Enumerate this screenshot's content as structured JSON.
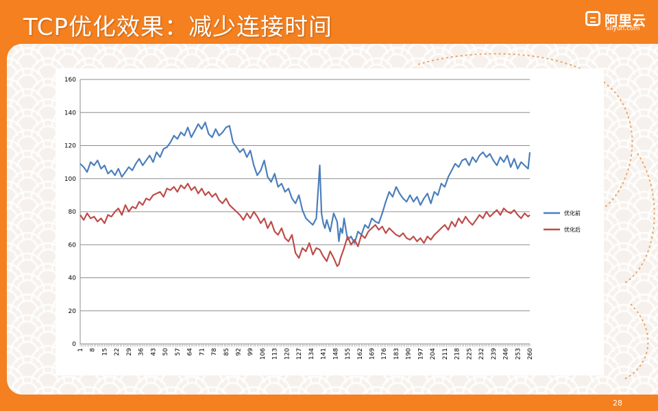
{
  "slide": {
    "title": "TCP优化效果：减少连接时间",
    "page_number": "28"
  },
  "logo": {
    "name": "阿里云",
    "domain": "aliyun.com",
    "icon": "aliyun-logo-icon"
  },
  "colors": {
    "background": "#f4801f",
    "series_before": "#4a7ebb",
    "series_after": "#be4b48"
  },
  "chart_data": {
    "type": "line",
    "title": "",
    "xlabel": "",
    "ylabel": "",
    "ylim": [
      0,
      160
    ],
    "yticks": [
      0,
      20,
      40,
      60,
      80,
      100,
      120,
      140,
      160
    ],
    "x_range": [
      1,
      260
    ],
    "xtick_labels": [
      "1",
      "8",
      "15",
      "22",
      "29",
      "36",
      "43",
      "50",
      "57",
      "64",
      "71",
      "78",
      "85",
      "92",
      "99",
      "106",
      "113",
      "120",
      "127",
      "134",
      "141",
      "148",
      "155",
      "162",
      "169",
      "176",
      "183",
      "190",
      "197",
      "204",
      "211",
      "218",
      "225",
      "232",
      "239",
      "246",
      "253",
      "260"
    ],
    "grid": "horizontal",
    "legend": "right",
    "series": [
      {
        "name": "优化前",
        "color": "#4a7ebb",
        "x": [
          1,
          3,
          5,
          7,
          9,
          11,
          13,
          15,
          17,
          19,
          21,
          23,
          25,
          27,
          29,
          31,
          33,
          35,
          37,
          39,
          41,
          43,
          45,
          47,
          49,
          51,
          53,
          55,
          57,
          59,
          61,
          63,
          65,
          67,
          69,
          71,
          73,
          75,
          77,
          79,
          81,
          83,
          85,
          87,
          89,
          91,
          93,
          95,
          97,
          99,
          101,
          103,
          105,
          107,
          109,
          111,
          113,
          115,
          117,
          119,
          121,
          123,
          125,
          127,
          129,
          131,
          133,
          135,
          137,
          139,
          140,
          141,
          142,
          143,
          145,
          147,
          149,
          150,
          151,
          152,
          153,
          155,
          157,
          159,
          161,
          163,
          165,
          167,
          169,
          171,
          173,
          175,
          177,
          179,
          181,
          183,
          185,
          187,
          189,
          191,
          193,
          195,
          197,
          199,
          201,
          203,
          205,
          207,
          209,
          211,
          213,
          215,
          217,
          219,
          221,
          223,
          225,
          227,
          229,
          231,
          233,
          235,
          237,
          239,
          241,
          243,
          245,
          247,
          249,
          251,
          253,
          255,
          257,
          259,
          260
        ],
        "y": [
          109,
          107,
          104,
          110,
          108,
          111,
          106,
          108,
          103,
          105,
          102,
          106,
          101,
          104,
          107,
          105,
          109,
          112,
          108,
          111,
          114,
          110,
          116,
          113,
          118,
          119,
          122,
          126,
          124,
          128,
          126,
          131,
          125,
          129,
          133,
          130,
          134,
          127,
          125,
          130,
          126,
          128,
          131,
          132,
          122,
          119,
          116,
          118,
          113,
          117,
          108,
          102,
          105,
          111,
          101,
          98,
          103,
          95,
          97,
          92,
          94,
          88,
          85,
          90,
          81,
          76,
          74,
          72,
          76,
          108,
          79,
          73,
          70,
          75,
          68,
          79,
          74,
          62,
          70,
          67,
          76,
          63,
          65,
          61,
          68,
          66,
          72,
          70,
          76,
          74,
          73,
          79,
          86,
          92,
          89,
          95,
          91,
          88,
          86,
          90,
          86,
          89,
          84,
          88,
          91,
          85,
          92,
          90,
          97,
          95,
          101,
          105,
          109,
          107,
          111,
          112,
          108,
          113,
          110,
          114,
          116,
          113,
          115,
          111,
          108,
          113,
          110,
          114,
          107,
          112,
          106,
          110,
          108,
          106,
          116
        ]
      },
      {
        "name": "优化后",
        "color": "#be4b48",
        "x": [
          1,
          3,
          5,
          7,
          9,
          11,
          13,
          15,
          17,
          19,
          21,
          23,
          25,
          27,
          29,
          31,
          33,
          35,
          37,
          39,
          41,
          43,
          45,
          47,
          49,
          51,
          53,
          55,
          57,
          59,
          61,
          63,
          65,
          67,
          69,
          71,
          73,
          75,
          77,
          79,
          81,
          83,
          85,
          87,
          89,
          91,
          93,
          95,
          97,
          99,
          101,
          103,
          105,
          107,
          109,
          111,
          113,
          115,
          117,
          119,
          121,
          123,
          125,
          127,
          129,
          131,
          133,
          135,
          137,
          139,
          141,
          143,
          145,
          147,
          149,
          150,
          151,
          153,
          155,
          157,
          159,
          161,
          163,
          165,
          167,
          169,
          171,
          173,
          175,
          177,
          179,
          181,
          183,
          185,
          187,
          189,
          191,
          193,
          195,
          197,
          199,
          201,
          203,
          205,
          207,
          209,
          211,
          213,
          215,
          217,
          219,
          221,
          223,
          225,
          227,
          229,
          231,
          233,
          235,
          237,
          239,
          241,
          243,
          245,
          247,
          249,
          251,
          253,
          255,
          257,
          259,
          260
        ],
        "y": [
          78,
          75,
          79,
          76,
          77,
          74,
          76,
          73,
          78,
          77,
          80,
          82,
          78,
          84,
          80,
          83,
          82,
          86,
          84,
          88,
          87,
          90,
          91,
          92,
          89,
          94,
          93,
          95,
          92,
          96,
          94,
          97,
          93,
          95,
          91,
          94,
          90,
          92,
          89,
          91,
          87,
          85,
          88,
          84,
          82,
          80,
          78,
          75,
          79,
          76,
          80,
          77,
          73,
          76,
          70,
          74,
          68,
          66,
          70,
          64,
          62,
          66,
          55,
          52,
          58,
          56,
          61,
          54,
          58,
          57,
          53,
          50,
          56,
          52,
          47,
          48,
          52,
          58,
          65,
          60,
          63,
          59,
          66,
          64,
          68,
          70,
          72,
          69,
          71,
          67,
          70,
          68,
          66,
          65,
          67,
          64,
          63,
          65,
          62,
          64,
          61,
          65,
          63,
          66,
          68,
          70,
          72,
          69,
          74,
          71,
          76,
          73,
          77,
          74,
          72,
          75,
          78,
          76,
          80,
          77,
          79,
          81,
          78,
          82,
          80,
          79,
          81,
          78,
          76,
          79,
          77,
          78
        ]
      }
    ]
  }
}
